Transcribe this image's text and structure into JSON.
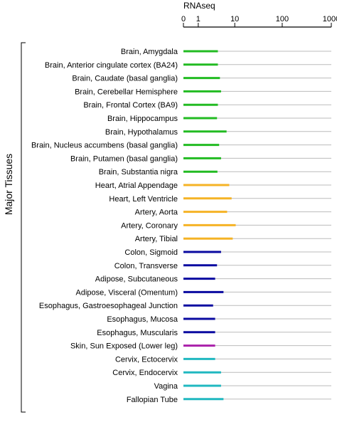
{
  "chart_data": {
    "type": "bar",
    "orientation": "horizontal",
    "scale": "log1p",
    "xlabel": "RNAseq",
    "group_label": "Major Tissues",
    "x_ticks": [
      "0",
      "1",
      "10",
      "100",
      "1000"
    ],
    "xlim": [
      0,
      1000
    ],
    "grid": true,
    "categories": [
      "Brain, Amygdala",
      "Brain, Anterior cingulate cortex (BA24)",
      "Brain, Caudate (basal ganglia)",
      "Brain, Cerebellar Hemisphere",
      "Brain, Frontal Cortex (BA9)",
      "Brain, Hippocampus",
      "Brain, Hypothalamus",
      "Brain, Nucleus accumbens (basal ganglia)",
      "Brain, Putamen (basal ganglia)",
      "Brain, Substantia nigra",
      "Heart, Atrial Appendage",
      "Heart, Left Ventricle",
      "Artery, Aorta",
      "Artery, Coronary",
      "Artery, Tibial",
      "Colon, Sigmoid",
      "Colon, Transverse",
      "Adipose, Subcutaneous",
      "Adipose, Visceral (Omentum)",
      "Esophagus, Gastroesophageal Junction",
      "Esophagus, Mucosa",
      "Esophagus, Muscularis",
      "Skin, Sun Exposed (Lower leg)",
      "Cervix, Ectocervix",
      "Cervix, Endocervix",
      "Vagina",
      "Fallopian Tube"
    ],
    "values": [
      4,
      4,
      4.5,
      4.8,
      4,
      3.8,
      6.5,
      4.3,
      4.8,
      3.9,
      7.5,
      8.5,
      6.7,
      10.5,
      9,
      4.8,
      3.8,
      3.4,
      5.5,
      3,
      3.4,
      3.4,
      3.4,
      3.4,
      4.8,
      4.8,
      5.5
    ],
    "colors": [
      "#22bb22",
      "#22bb22",
      "#22bb22",
      "#22bb22",
      "#22bb22",
      "#22bb22",
      "#22bb22",
      "#22bb22",
      "#22bb22",
      "#22bb22",
      "#f5b325",
      "#f5b325",
      "#f5b325",
      "#f5b325",
      "#f5b325",
      "#0a0aa0",
      "#0a0aa0",
      "#0a0aa0",
      "#0a0aa0",
      "#0a0aa0",
      "#0a0aa0",
      "#0a0aa0",
      "#aa20aa",
      "#20b8c0",
      "#20b8c0",
      "#20b8c0",
      "#20b8c0"
    ],
    "gridline_color": "#bbbbbb"
  }
}
